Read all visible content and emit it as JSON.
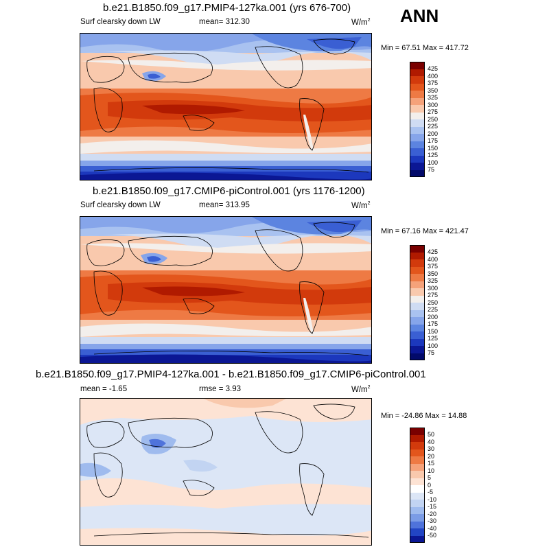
{
  "season": "ANN",
  "panels": [
    {
      "title": "b.e21.B1850.f09_g17.PMIP4-127ka.001 (yrs 676-700)",
      "variable": "Surf clearsky down LW",
      "stat": "mean= 312.30",
      "units": "W/m",
      "units_sup": "2",
      "minmax": "Min =  67.51 Max = 417.72",
      "colorbar": [
        "425",
        "400",
        "375",
        "350",
        "325",
        "300",
        "275",
        "250",
        "225",
        "200",
        "175",
        "150",
        "125",
        "100",
        "75"
      ]
    },
    {
      "title": "b.e21.B1850.f09_g17.CMIP6-piControl.001 (yrs 1176-1200)",
      "variable": "Surf clearsky down LW",
      "stat": "mean= 313.95",
      "units": "W/m",
      "units_sup": "2",
      "minmax": "Min =  67.16 Max = 421.47",
      "colorbar": [
        "425",
        "400",
        "375",
        "350",
        "325",
        "300",
        "275",
        "250",
        "225",
        "200",
        "175",
        "150",
        "125",
        "100",
        "75"
      ]
    },
    {
      "title": "b.e21.B1850.f09_g17.PMIP4-127ka.001 - b.e21.B1850.f09_g17.CMIP6-piControl.001",
      "stat": "mean =  -1.65",
      "rmse": "rmse =   3.93",
      "units": "W/m",
      "units_sup": "2",
      "minmax": "Min = -24.86 Max =  14.88",
      "colorbar": [
        "50",
        "40",
        "30",
        "20",
        "15",
        "10",
        "5",
        "0",
        "-5",
        "-10",
        "-15",
        "-20",
        "-30",
        "-40",
        "-50"
      ]
    }
  ],
  "palette_abs": [
    "#7a0000",
    "#b01a00",
    "#d23a0c",
    "#e3561c",
    "#ee7a44",
    "#f5a27a",
    "#f9c9ad",
    "#f3efec",
    "#cfdcf3",
    "#a9c2f0",
    "#86a5ea",
    "#5c84e0",
    "#3a5fd3",
    "#1c38bd",
    "#0b1794",
    "#020a6a"
  ],
  "palette_diff": [
    "#7a0000",
    "#b01a00",
    "#d23a0c",
    "#e3561c",
    "#ee7a44",
    "#f5a27a",
    "#f9c9ad",
    "#fde3d4",
    "#ffffff",
    "#dce6f6",
    "#c2d4f2",
    "#9fbbee",
    "#7b9ce6",
    "#4f73db",
    "#2245c4",
    "#0b1794"
  ]
}
